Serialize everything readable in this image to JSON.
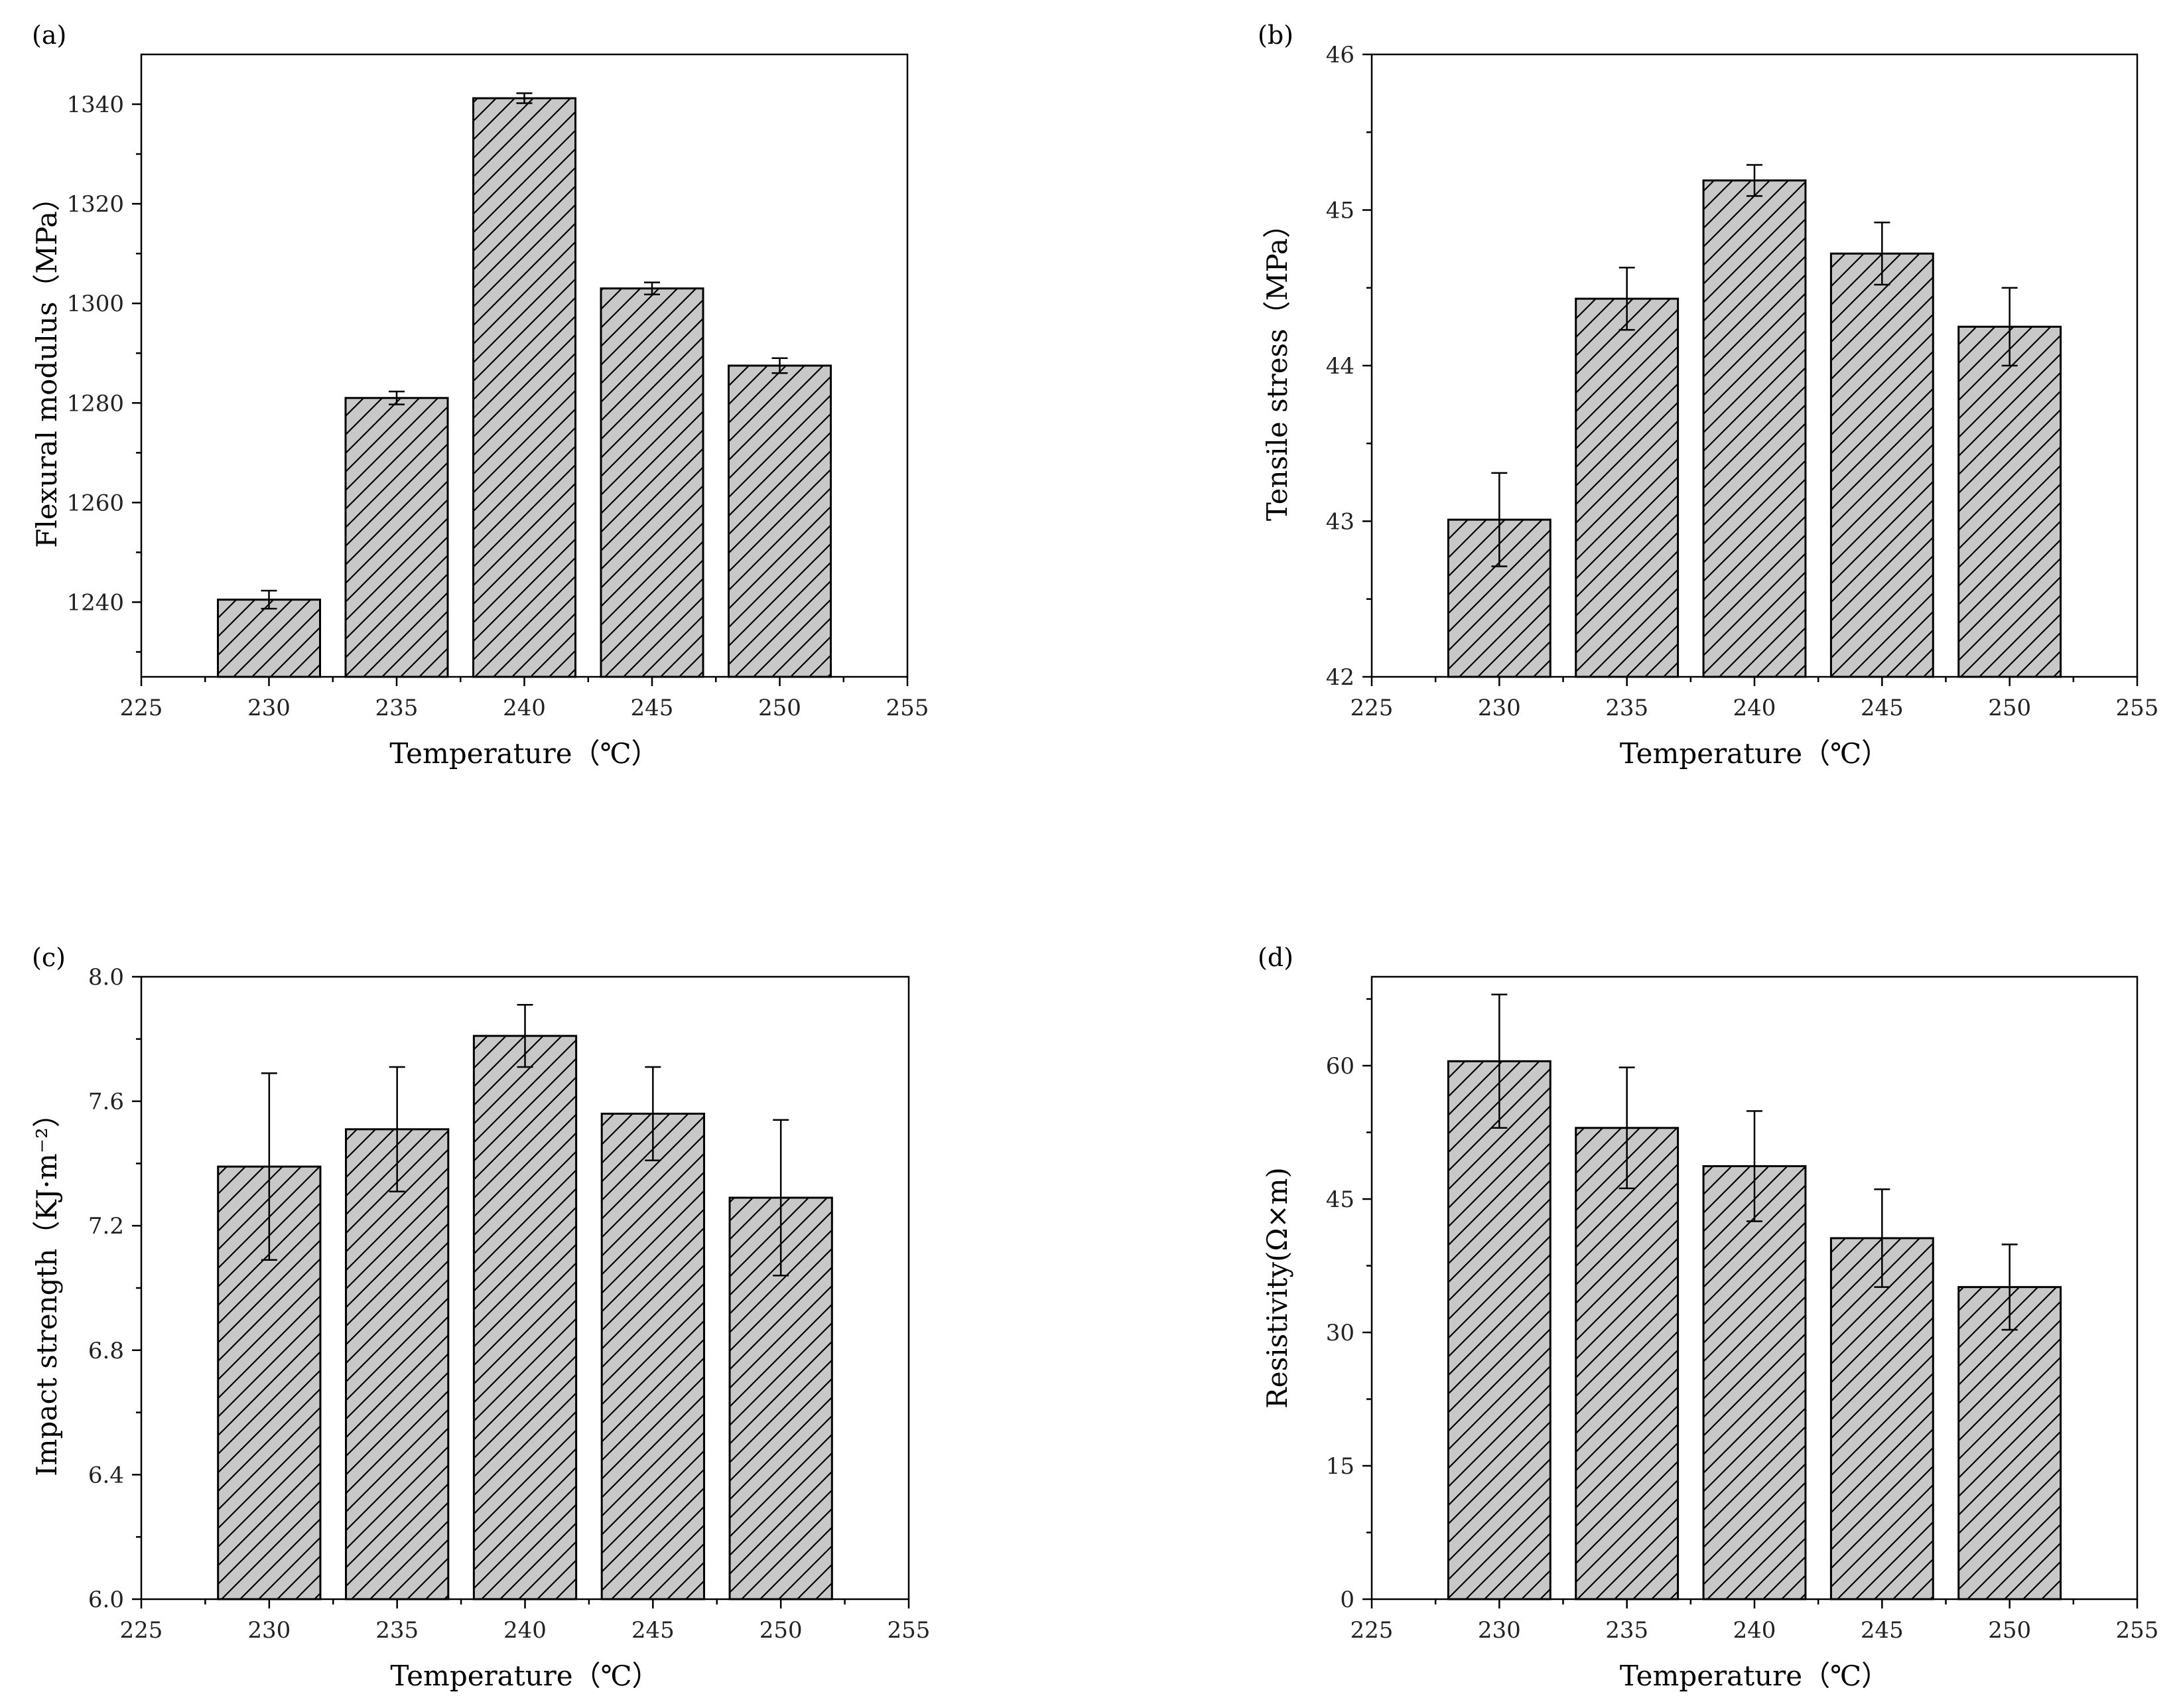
{
  "style": {
    "bar_color": "#c8c8c8",
    "hatch_color": "#000000",
    "axis_color": "#000000"
  },
  "chart_data": [
    {
      "type": "bar",
      "panel": "(a)",
      "x": [
        230,
        235,
        240,
        245,
        250
      ],
      "values": [
        1240.5,
        1281,
        1341.2,
        1303,
        1287.5
      ],
      "errors": [
        1.8,
        1.3,
        1.0,
        1.2,
        1.5
      ],
      "xlabel": "Temperature（℃）",
      "ylabel": "Flexural modulus（MPa）",
      "xlim": [
        225,
        255
      ],
      "ylim": [
        1225,
        1350
      ],
      "xticks": [
        225,
        230,
        235,
        240,
        245,
        250,
        255
      ],
      "yticks": [
        1240,
        1260,
        1280,
        1300,
        1320,
        1340
      ],
      "ytick_labels": [
        "1240",
        "1260",
        "1280",
        "1300",
        "1320",
        "1340"
      ],
      "yminor": [
        1230,
        1250,
        1270,
        1290,
        1310,
        1330
      ]
    },
    {
      "type": "bar",
      "panel": "(b)",
      "x": [
        230,
        235,
        240,
        245,
        250
      ],
      "values": [
        43.01,
        44.43,
        45.19,
        44.72,
        44.25
      ],
      "errors": [
        0.3,
        0.2,
        0.1,
        0.2,
        0.25
      ],
      "xlabel": "Temperature（℃）",
      "ylabel": "Tensile stress（MPa）",
      "xlim": [
        225,
        255
      ],
      "ylim": [
        42,
        46
      ],
      "xticks": [
        225,
        230,
        235,
        240,
        245,
        250,
        255
      ],
      "yticks": [
        42,
        43,
        44,
        45,
        46
      ],
      "ytick_labels": [
        "42",
        "43",
        "44",
        "45",
        "46"
      ],
      "yminor": [
        42.5,
        43.5,
        44.5,
        45.5
      ]
    },
    {
      "type": "bar",
      "panel": "(c)",
      "x": [
        230,
        235,
        240,
        245,
        250
      ],
      "values": [
        7.39,
        7.51,
        7.81,
        7.56,
        7.29
      ],
      "errors": [
        0.3,
        0.2,
        0.1,
        0.15,
        0.25
      ],
      "xlabel": "Temperature（℃）",
      "ylabel": "Impact strength（KJ·m⁻²）",
      "xlim": [
        225,
        255
      ],
      "ylim": [
        6.0,
        8.0
      ],
      "xticks": [
        225,
        230,
        235,
        240,
        245,
        250,
        255
      ],
      "yticks": [
        6.0,
        6.4,
        6.8,
        7.2,
        7.6,
        8.0
      ],
      "ytick_labels": [
        "6.0",
        "6.4",
        "6.8",
        "7.2",
        "7.6",
        "8.0"
      ],
      "yminor": [
        6.2,
        6.6,
        7.0,
        7.4,
        7.8
      ]
    },
    {
      "type": "bar",
      "panel": "(d)",
      "x": [
        230,
        235,
        240,
        245,
        250
      ],
      "values": [
        60.5,
        53,
        48.7,
        40.6,
        35.1
      ],
      "errors": [
        7.5,
        6.8,
        6.2,
        5.5,
        4.8
      ],
      "xlabel": "Temperature（℃）",
      "ylabel": "Resistivity(Ω×m)",
      "xlim": [
        225,
        255
      ],
      "ylim": [
        0,
        70
      ],
      "xticks": [
        225,
        230,
        235,
        240,
        245,
        250,
        255
      ],
      "yticks": [
        0,
        15,
        30,
        45,
        60
      ],
      "ytick_labels": [
        "0",
        "15",
        "30",
        "45",
        "60"
      ],
      "yminor": [
        7.5,
        22.5,
        37.5,
        52.5,
        67.5
      ]
    }
  ]
}
